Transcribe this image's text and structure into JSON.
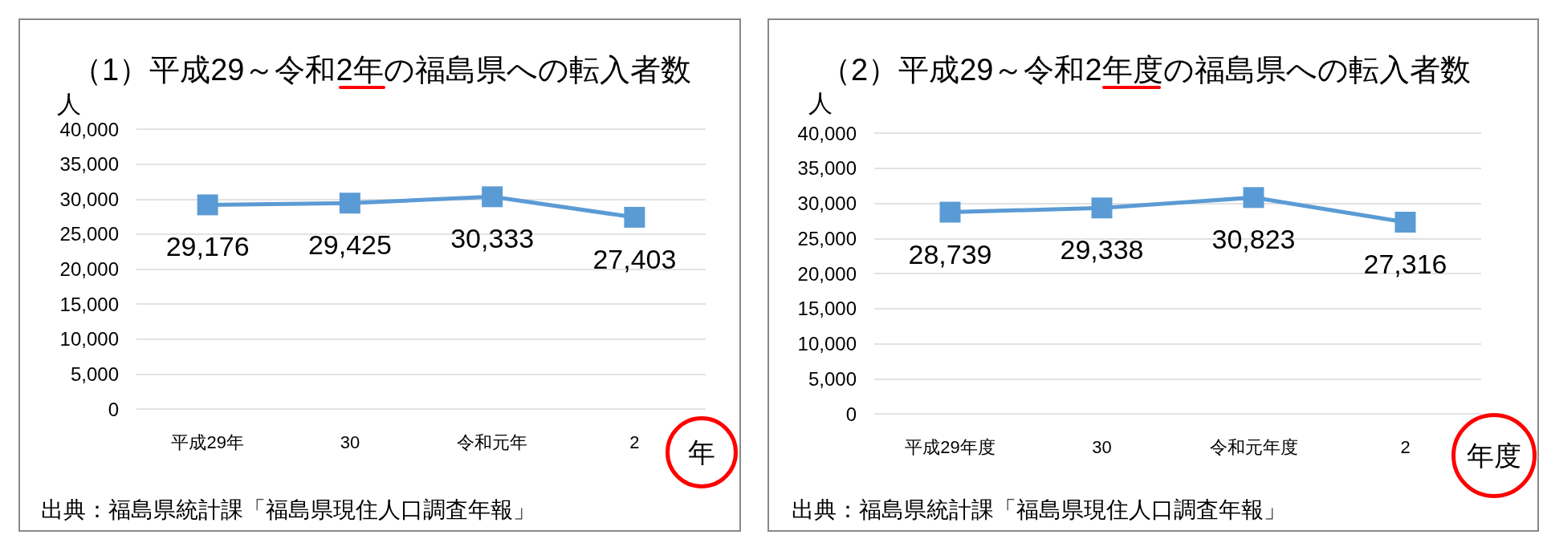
{
  "chart_data": [
    {
      "type": "line",
      "title": "（1）平成29～令和2年の福島県への転入者数",
      "ylabel": "人",
      "xlabel": "年",
      "categories": [
        "平成29年",
        "30",
        "令和元年",
        "2"
      ],
      "series": [
        {
          "color": "#5b9bd5",
          "values": [
            29176,
            29425,
            30333,
            27403
          ],
          "value_labels": [
            "29,176",
            "29,425",
            "30,333",
            "27,403"
          ]
        }
      ],
      "ylim": [
        0,
        40000
      ],
      "yticks": [
        {
          "value": 0,
          "label": "0"
        },
        {
          "value": 5000,
          "label": "5,000"
        },
        {
          "value": 10000,
          "label": "10,000"
        },
        {
          "value": 15000,
          "label": "15,000"
        },
        {
          "value": 20000,
          "label": "20,000"
        },
        {
          "value": 25000,
          "label": "25,000"
        },
        {
          "value": 30000,
          "label": "30,000"
        },
        {
          "value": 35000,
          "label": "35,000"
        },
        {
          "value": 40000,
          "label": "40,000"
        }
      ],
      "grid": "y",
      "marker": "square",
      "annotations": [
        "出典：福島県統計課「福島県現住人口調査年報」"
      ]
    },
    {
      "type": "line",
      "title": "（2）平成29～令和2年度の福島県への転入者数",
      "ylabel": "人",
      "xlabel": "年度",
      "categories": [
        "平成29年度",
        "30",
        "令和元年度",
        "2"
      ],
      "series": [
        {
          "color": "#5b9bd5",
          "values": [
            28739,
            29338,
            30823,
            27316
          ],
          "value_labels": [
            "28,739",
            "29,338",
            "30,823",
            "27,316"
          ]
        }
      ],
      "ylim": [
        0,
        40000
      ],
      "yticks": [
        {
          "value": 0,
          "label": "0"
        },
        {
          "value": 5000,
          "label": "5,000"
        },
        {
          "value": 10000,
          "label": "10,000"
        },
        {
          "value": 15000,
          "label": "15,000"
        },
        {
          "value": 20000,
          "label": "20,000"
        },
        {
          "value": 25000,
          "label": "25,000"
        },
        {
          "value": 30000,
          "label": "30,000"
        },
        {
          "value": 35000,
          "label": "35,000"
        },
        {
          "value": 40000,
          "label": "40,000"
        }
      ],
      "grid": "y",
      "marker": "square",
      "annotations": [
        "出典：福島県統計課「福島県現住人口調査年報」"
      ]
    }
  ]
}
